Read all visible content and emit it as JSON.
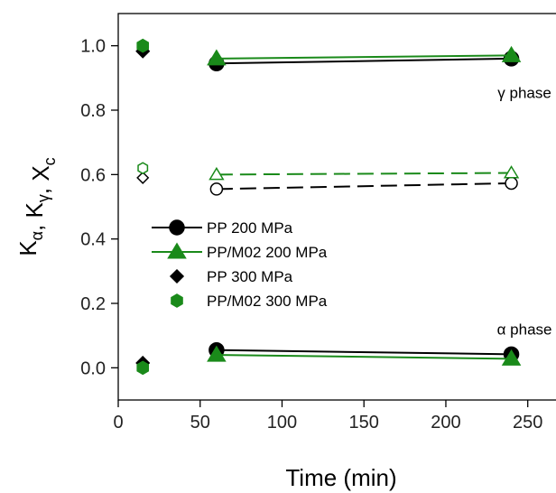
{
  "chart_data": {
    "type": "scatter",
    "title": "",
    "xlabel": "Time (min)",
    "ylabel": {
      "parts": [
        {
          "text": "K",
          "sub": "α"
        },
        {
          "text": ", K",
          "sub": "γ"
        },
        {
          "text": ", X",
          "sub": "c"
        }
      ]
    },
    "xlim": [
      0,
      270
    ],
    "ylim": [
      -0.1,
      1.1
    ],
    "xticks": [
      0,
      50,
      100,
      150,
      200,
      250
    ],
    "xtick_labels": [
      "0",
      "50",
      "100",
      "150",
      "200",
      "250"
    ],
    "yticks": [
      0.0,
      0.2,
      0.4,
      0.6,
      0.8,
      1.0
    ],
    "ytick_labels": [
      "0.0",
      "0.2",
      "0.4",
      "0.6",
      "0.8",
      "1.0"
    ],
    "grid": false,
    "legend_position": "middle-left",
    "series": [
      {
        "name": "PP 200 MPa",
        "legend": true,
        "color": "#000000",
        "marker": "circle",
        "filled": true,
        "line": "solid",
        "x": [
          60,
          240
        ],
        "y": [
          0.945,
          0.96
        ]
      },
      {
        "name": "PP/M02 200 MPa",
        "legend": true,
        "color": "#1a8a1a",
        "marker": "triangle",
        "filled": true,
        "line": "solid",
        "x": [
          60,
          240
        ],
        "y": [
          0.96,
          0.97
        ]
      },
      {
        "name": "PP 300 MPa",
        "legend": true,
        "color": "#000000",
        "marker": "diamond",
        "filled": true,
        "line": "none",
        "x": [
          15
        ],
        "y": [
          0.983
        ]
      },
      {
        "name": "PP/M02 300 MPa",
        "legend": true,
        "color": "#1a8a1a",
        "marker": "hexagon",
        "filled": true,
        "line": "none",
        "x": [
          15
        ],
        "y": [
          1.0
        ]
      },
      {
        "legend": false,
        "color": "#000000",
        "marker": "circle",
        "filled": false,
        "line": "dashed",
        "x": [
          60,
          240
        ],
        "y": [
          0.555,
          0.573
        ]
      },
      {
        "legend": false,
        "color": "#1a8a1a",
        "marker": "triangle",
        "filled": false,
        "line": "dashed",
        "x": [
          60,
          240
        ],
        "y": [
          0.6,
          0.605
        ]
      },
      {
        "legend": false,
        "color": "#000000",
        "marker": "diamond",
        "filled": false,
        "line": "none",
        "x": [
          15
        ],
        "y": [
          0.59
        ]
      },
      {
        "legend": false,
        "color": "#1a8a1a",
        "marker": "hexagon",
        "filled": false,
        "line": "none",
        "x": [
          15
        ],
        "y": [
          0.62
        ]
      },
      {
        "legend": false,
        "color": "#000000",
        "marker": "circle",
        "filled": true,
        "line": "solid",
        "x": [
          60,
          240
        ],
        "y": [
          0.055,
          0.042
        ]
      },
      {
        "legend": false,
        "color": "#1a8a1a",
        "marker": "triangle",
        "filled": true,
        "line": "solid",
        "x": [
          60,
          240
        ],
        "y": [
          0.04,
          0.028
        ]
      },
      {
        "legend": false,
        "color": "#000000",
        "marker": "diamond",
        "filled": true,
        "line": "none",
        "x": [
          15
        ],
        "y": [
          0.015
        ]
      },
      {
        "legend": false,
        "color": "#1a8a1a",
        "marker": "hexagon",
        "filled": true,
        "line": "none",
        "x": [
          15
        ],
        "y": [
          0.0
        ]
      }
    ],
    "annotations": [
      {
        "text": "γ phase",
        "x": 248,
        "y": 0.855
      },
      {
        "text": "α phase",
        "x": 248,
        "y": 0.12
      }
    ]
  }
}
